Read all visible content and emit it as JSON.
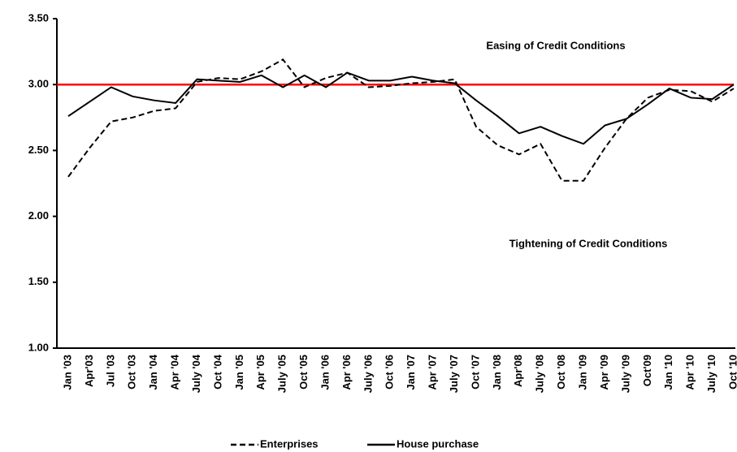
{
  "chart_data": {
    "type": "line",
    "categories": [
      "Jan '03",
      "Apr'03",
      "Jul '03",
      "Oct '03",
      "Jan '04",
      "Apr '04",
      "July '04",
      "Oct '04",
      "Jan '05",
      "Apr '05",
      "July '05",
      "Oct '05",
      "Jan '06",
      "Apr '06",
      "July '06",
      "Oct '06",
      "Jan '07",
      "Apr '07",
      "July '07",
      "Oct '07",
      "Jan '08",
      "Apr'08",
      "July '08",
      "Oct '08",
      "Jan '09",
      "Apr '09",
      "July '09",
      "Oct'09",
      "Jan '10",
      "Apr '10",
      "July '10",
      "Oct '10"
    ],
    "series": [
      {
        "name": "Enterprises",
        "color": "#000000",
        "dash": true,
        "values": [
          2.3,
          2.52,
          2.72,
          2.75,
          2.8,
          2.82,
          3.02,
          3.05,
          3.04,
          3.1,
          3.19,
          2.98,
          3.05,
          3.09,
          2.98,
          2.99,
          3.01,
          3.02,
          3.04,
          2.68,
          2.54,
          2.47,
          2.55,
          2.27,
          2.27,
          2.52,
          2.74,
          2.9,
          2.96,
          2.95,
          2.87,
          2.97
        ]
      },
      {
        "name": "House purchase",
        "color": "#000000",
        "dash": false,
        "values": [
          2.76,
          2.87,
          2.98,
          2.91,
          2.88,
          2.86,
          3.04,
          3.03,
          3.02,
          3.07,
          2.98,
          3.07,
          2.98,
          3.09,
          3.03,
          3.03,
          3.06,
          3.03,
          3.01,
          2.88,
          2.76,
          2.63,
          2.68,
          2.61,
          2.55,
          2.69,
          2.74,
          2.85,
          2.97,
          2.9,
          2.89,
          3.0
        ]
      }
    ],
    "reference_line": {
      "value": 3,
      "color": "#ff0000"
    },
    "annotations": [
      "Easing of Credit Conditions",
      "Tightening of Credit Conditions"
    ],
    "ylim": [
      1,
      3.5
    ],
    "yticks": [
      {
        "value": 1,
        "label": "1.00"
      },
      {
        "value": 1.5,
        "label": "1.50"
      },
      {
        "value": 2,
        "label": "2.00"
      },
      {
        "value": 2.5,
        "label": "2.50"
      },
      {
        "value": 3,
        "label": "3.00"
      },
      {
        "value": 3.5,
        "label": "3.50"
      }
    ],
    "legend": "bottom"
  }
}
